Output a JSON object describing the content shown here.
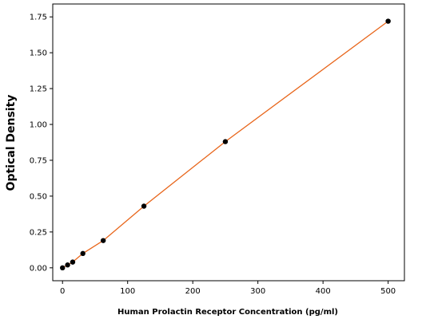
{
  "chart_data": {
    "type": "scatter",
    "title": "",
    "xlabel": "Human Prolactin Receptor Concentration (pg/ml)",
    "ylabel": "Optical Density",
    "xlim": [
      -15,
      525
    ],
    "ylim": [
      -0.09,
      1.84
    ],
    "x_ticks": [
      0,
      100,
      200,
      300,
      400,
      500
    ],
    "x_tick_labels": [
      "0",
      "100",
      "200",
      "300",
      "400",
      "500"
    ],
    "y_ticks": [
      0,
      0.25,
      0.5,
      0.75,
      1.0,
      1.25,
      1.5,
      1.75
    ],
    "y_tick_labels": [
      "0.00",
      "0.25",
      "0.50",
      "0.75",
      "1.00",
      "1.25",
      "1.50",
      "1.75"
    ],
    "grid": false,
    "legend": "none",
    "series": [
      {
        "x": [
          0,
          7.8,
          15.6,
          31.25,
          62.5,
          125,
          250,
          500
        ],
        "y": [
          0.0,
          0.02,
          0.04,
          0.1,
          0.19,
          0.43,
          0.88,
          1.72
        ],
        "marker_color": "#000000",
        "fit_line_color": "#e8651a"
      }
    ]
  }
}
